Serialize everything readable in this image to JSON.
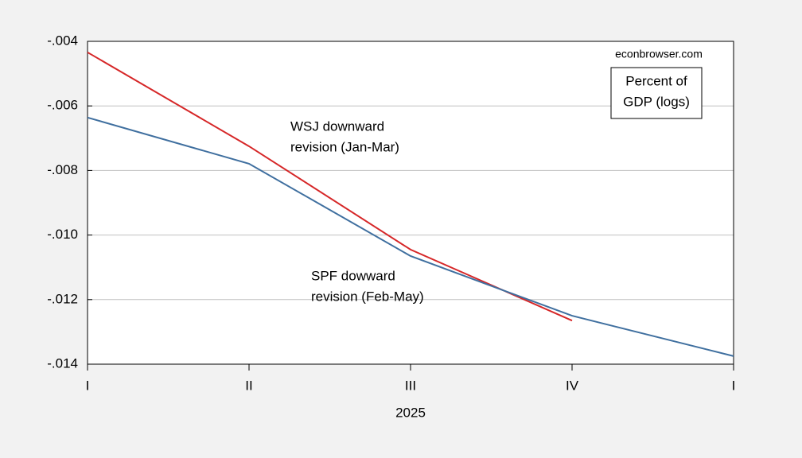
{
  "chart_data": {
    "type": "line",
    "categories": [
      "I",
      "II",
      "III",
      "IV",
      "I"
    ],
    "xlabel": "2025",
    "series": [
      {
        "color": "#d62728",
        "values": [
          -0.00434,
          -0.00725,
          -0.01045,
          -0.01265,
          null
        ]
      },
      {
        "color": "#3f6f9f",
        "values": [
          -0.00636,
          -0.00779,
          -0.01065,
          -0.0125,
          -0.01375
        ]
      }
    ],
    "ylim": [
      -0.014,
      -0.004
    ],
    "yticks": [
      {
        "value": -0.014,
        "label": "-.014"
      },
      {
        "value": -0.012,
        "label": "-.012"
      },
      {
        "value": -0.01,
        "label": "-.010"
      },
      {
        "value": -0.008,
        "label": "-.008"
      },
      {
        "value": -0.006,
        "label": "-.006"
      },
      {
        "value": -0.004,
        "label": "-.004"
      }
    ],
    "grid": true,
    "annotations": [
      {
        "lines": [
          "WSJ downward",
          "revision (Jan-Mar)"
        ],
        "color": "#d62728"
      },
      {
        "lines": [
          "SPF dowward",
          "revision (Feb-May)"
        ],
        "color": "#1f4e8c"
      },
      {
        "lines": [
          "econbrowser.com"
        ],
        "color": "#000000"
      },
      {
        "lines": [
          "Percent of",
          "GDP (logs)"
        ],
        "color": "#000000",
        "boxed": true
      }
    ]
  }
}
